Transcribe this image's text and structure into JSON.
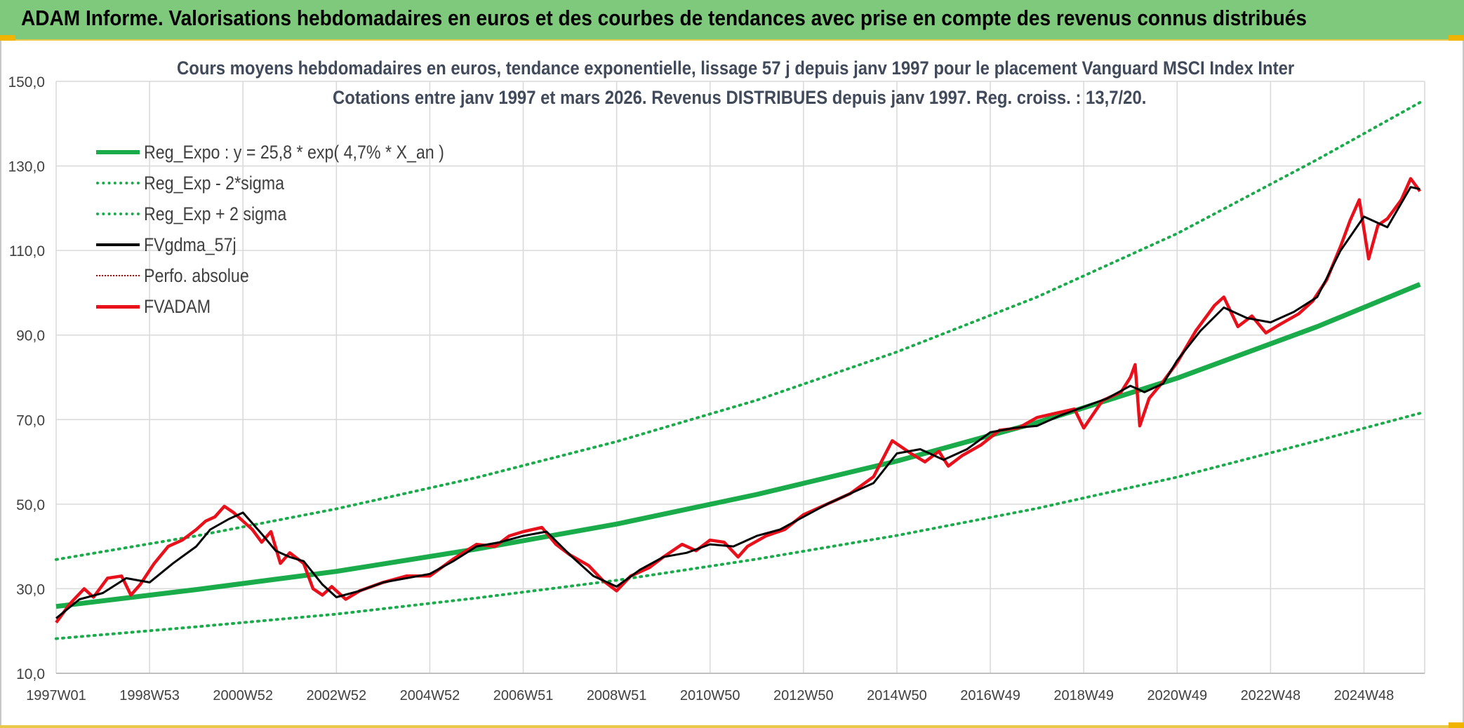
{
  "header": {
    "title": "ADAM Informe. Valorisations hebdomadaires en euros et des courbes de tendances avec prise en compte des revenus connus distribués"
  },
  "colors": {
    "header_bg": "#7ec97b",
    "reg_expo": "#1aab4b",
    "fv_adam": "#e8101a",
    "fv_gdma": "#000000",
    "perfo": "#c00000",
    "grid": "#d9d9d9"
  },
  "chart_data": {
    "type": "line",
    "title_line1": "Cours moyens hebdomadaires en euros, tendance exponentielle, lissage 57 j depuis janv 1997 pour le placement Vanguard MSCI Index Inter",
    "title_line2": "Cotations entre janv 1997 et mars 2026. Revenus DISTRIBUES depuis janv 1997. Reg. croiss. : 13,7/20.",
    "ylim": [
      10,
      150
    ],
    "y_ticks": [
      "150,0",
      "130,0",
      "110,0",
      "90,0",
      "70,0",
      "50,0",
      "30,0",
      "10,0"
    ],
    "x_ticks": [
      "1997W01",
      "1998W53",
      "2000W52",
      "2002W52",
      "2004W52",
      "2006W51",
      "2008W51",
      "2010W50",
      "2012W50",
      "2014W50",
      "2016W49",
      "2018W49",
      "2020W49",
      "2022W48",
      "2024W48"
    ],
    "grid": true,
    "legend_position": "top-left",
    "series": [
      {
        "name": "Reg_Expo : y = 25,8 * exp( 4,7% *  X_an )",
        "style": "solid-thick",
        "x": [
          1997.0,
          2000.0,
          2003.0,
          2006.0,
          2009.0,
          2012.0,
          2015.0,
          2018.0,
          2021.0,
          2024.0,
          2026.2
        ],
        "values": [
          25.8,
          29.8,
          34.1,
          39.4,
          45.3,
          52.3,
          60.2,
          69.3,
          79.8,
          92.0,
          102.0
        ]
      },
      {
        "name": "Reg_Exp - 2*sigma",
        "style": "dotted",
        "x": [
          1997.0,
          2000.0,
          2003.0,
          2006.0,
          2009.0,
          2012.0,
          2015.0,
          2018.0,
          2021.0,
          2024.0,
          2026.2
        ],
        "values": [
          18.2,
          21.0,
          24.0,
          27.8,
          32.0,
          37.0,
          42.6,
          49.0,
          56.4,
          65.0,
          71.5
        ]
      },
      {
        "name": "Reg_Exp + 2 sigma",
        "style": "dotted",
        "x": [
          1997.0,
          2000.0,
          2003.0,
          2006.0,
          2009.0,
          2012.0,
          2015.0,
          2018.0,
          2021.0,
          2024.0,
          2026.2
        ],
        "values": [
          36.9,
          42.5,
          48.9,
          56.3,
          64.8,
          74.6,
          86.0,
          99.0,
          114.0,
          131.5,
          145.0
        ]
      },
      {
        "name": "FVgdma_57j",
        "style": "solid-thin",
        "x": [
          1997.0,
          1997.5,
          1998.0,
          1998.5,
          1999.0,
          1999.5,
          2000.0,
          2000.3,
          2000.7,
          2001.0,
          2001.4,
          2001.7,
          2002.0,
          2002.3,
          2002.7,
          2003.0,
          2003.5,
          2004.0,
          2004.5,
          2005.0,
          2005.5,
          2006.0,
          2006.5,
          2007.0,
          2007.5,
          2008.0,
          2008.5,
          2009.0,
          2009.5,
          2010.0,
          2010.5,
          2011.0,
          2011.5,
          2012.0,
          2012.5,
          2013.0,
          2013.5,
          2014.0,
          2014.5,
          2015.0,
          2015.5,
          2016.0,
          2016.5,
          2017.0,
          2017.5,
          2018.0,
          2018.5,
          2019.0,
          2019.5,
          2020.0,
          2020.3,
          2020.7,
          2021.0,
          2021.5,
          2022.0,
          2022.5,
          2023.0,
          2023.5,
          2024.0,
          2024.5,
          2025.0,
          2025.5,
          2026.0,
          2026.2
        ],
        "values": [
          23.0,
          27.5,
          29.0,
          32.5,
          31.5,
          36.0,
          40.0,
          44.0,
          46.5,
          48.0,
          43.0,
          39.0,
          37.5,
          36.5,
          31.0,
          28.0,
          29.5,
          31.5,
          32.5,
          33.5,
          36.5,
          40.0,
          41.0,
          42.5,
          43.5,
          38.0,
          33.0,
          30.5,
          34.5,
          37.5,
          38.5,
          40.5,
          40.0,
          42.5,
          44.0,
          47.0,
          50.0,
          52.5,
          55.0,
          62.0,
          63.0,
          60.5,
          63.0,
          67.0,
          68.0,
          68.5,
          71.0,
          73.0,
          75.0,
          78.0,
          76.5,
          78.5,
          84.0,
          91.0,
          96.5,
          94.0,
          93.0,
          95.5,
          99.0,
          110.0,
          118.0,
          115.5,
          125.0,
          124.5
        ]
      },
      {
        "name": "Perfo. absolue",
        "style": "dotted-thin",
        "x": [],
        "values": []
      },
      {
        "name": "FVADAM",
        "style": "solid-thick",
        "x": [
          1997.0,
          1997.3,
          1997.6,
          1997.8,
          1998.1,
          1998.4,
          1998.6,
          1998.8,
          1999.1,
          1999.4,
          1999.7,
          2000.0,
          2000.2,
          2000.4,
          2000.6,
          2000.8,
          2001.0,
          2001.2,
          2001.4,
          2001.6,
          2001.8,
          2002.0,
          2002.3,
          2002.5,
          2002.7,
          2002.9,
          2003.2,
          2003.5,
          2004.0,
          2004.5,
          2005.0,
          2005.5,
          2006.0,
          2006.4,
          2006.7,
          2007.0,
          2007.4,
          2007.7,
          2008.0,
          2008.4,
          2008.7,
          2009.0,
          2009.3,
          2009.7,
          2010.0,
          2010.4,
          2010.7,
          2011.0,
          2011.3,
          2011.6,
          2011.8,
          2012.2,
          2012.6,
          2013.0,
          2013.5,
          2014.0,
          2014.5,
          2014.9,
          2015.3,
          2015.6,
          2015.9,
          2016.1,
          2016.4,
          2016.8,
          2017.2,
          2017.6,
          2018.0,
          2018.4,
          2018.8,
          2019.0,
          2019.4,
          2019.8,
          2020.0,
          2020.1,
          2020.2,
          2020.4,
          2020.7,
          2021.0,
          2021.4,
          2021.8,
          2022.0,
          2022.3,
          2022.6,
          2022.9,
          2023.2,
          2023.6,
          2023.9,
          2024.2,
          2024.5,
          2024.7,
          2024.9,
          2025.1,
          2025.3,
          2025.5,
          2025.8,
          2026.0,
          2026.2
        ],
        "values": [
          22.0,
          26.5,
          30.0,
          28.0,
          32.5,
          33.0,
          28.5,
          31.0,
          36.0,
          40.0,
          41.5,
          44.0,
          46.0,
          47.0,
          49.5,
          48.0,
          46.0,
          44.0,
          41.0,
          43.5,
          36.0,
          38.5,
          36.0,
          30.0,
          28.5,
          30.5,
          27.5,
          29.5,
          31.5,
          33.0,
          33.0,
          37.0,
          40.5,
          40.0,
          42.5,
          43.5,
          44.5,
          40.5,
          38.0,
          35.5,
          32.0,
          29.5,
          33.0,
          35.0,
          37.5,
          40.5,
          39.0,
          41.5,
          41.0,
          37.5,
          40.0,
          42.5,
          44.0,
          47.5,
          50.0,
          52.5,
          56.5,
          65.0,
          62.0,
          60.0,
          62.5,
          59.0,
          61.5,
          64.0,
          67.5,
          68.0,
          70.5,
          71.5,
          72.5,
          68.0,
          74.5,
          76.5,
          80.0,
          83.0,
          68.5,
          75.0,
          79.0,
          83.5,
          91.0,
          97.0,
          99.0,
          92.0,
          94.5,
          90.5,
          92.5,
          95.0,
          98.0,
          103.0,
          111.0,
          117.0,
          122.0,
          108.0,
          116.0,
          117.5,
          122.0,
          127.0,
          124.0
        ]
      }
    ]
  }
}
